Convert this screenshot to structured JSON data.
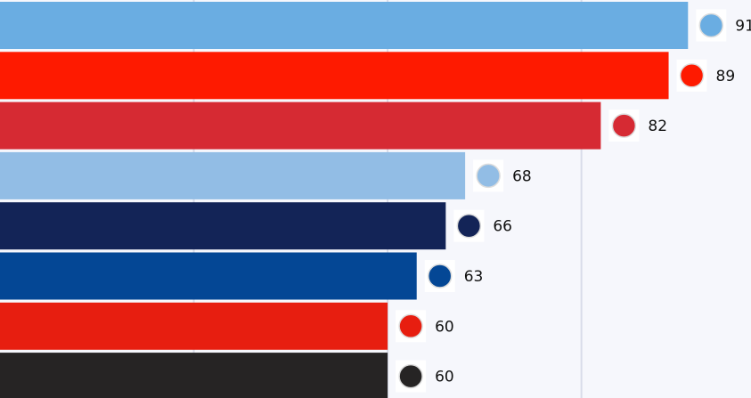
{
  "chart_data": {
    "type": "hbar",
    "values": [
      91,
      89,
      82,
      68,
      66,
      63,
      60,
      60
    ],
    "colors": [
      "#6aade2",
      "#fe1a00",
      "#d62a33",
      "#92bde5",
      "#132457",
      "#044795",
      "#e71e10",
      "#262424"
    ],
    "xlim": [
      20,
      97.5
    ],
    "xticks": [
      40,
      60,
      80
    ],
    "grid": true
  }
}
